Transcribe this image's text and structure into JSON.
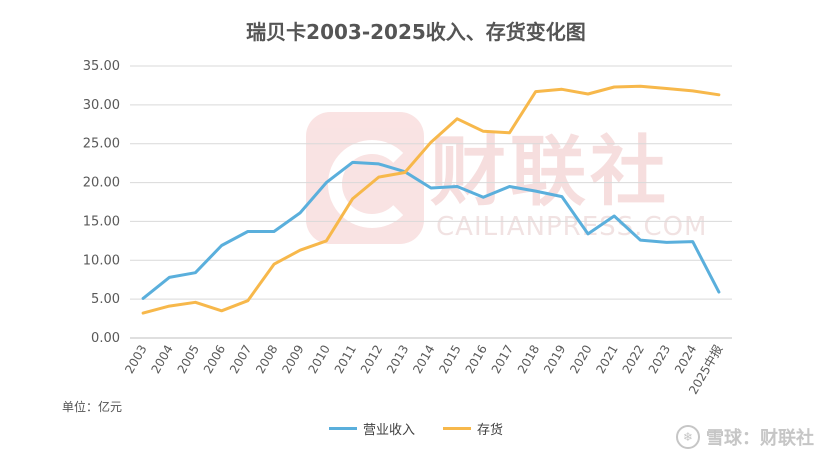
{
  "watermark": {
    "logo_icon": "cailianpress-logo-icon",
    "text_cn": "财联社",
    "text_en": "CAILIANPRESS.COM"
  },
  "unit_label": "单位：亿元",
  "brand": {
    "icon": "snowball-icon",
    "text": "雪球：财联社"
  },
  "chart_data": {
    "type": "line",
    "title": "瑞贝卡2003-2025收入、存货变化图",
    "xlabel": "",
    "ylabel": "",
    "ylim": [
      0,
      35
    ],
    "yticks": [
      "0.00",
      "5.00",
      "10.00",
      "15.00",
      "20.00",
      "25.00",
      "30.00",
      "35.00"
    ],
    "grid": true,
    "legend_position": "bottom",
    "categories": [
      "2003",
      "2004",
      "2005",
      "2006",
      "2007",
      "2008",
      "2009",
      "2010",
      "2011",
      "2012",
      "2013",
      "2014",
      "2015",
      "2016",
      "2017",
      "2018",
      "2019",
      "2020",
      "2021",
      "2022",
      "2023",
      "2024",
      "2025中报"
    ],
    "series": [
      {
        "name": "营业收入",
        "color": "#5aafdc",
        "values": [
          5.1,
          7.8,
          8.4,
          11.9,
          13.7,
          13.7,
          16.1,
          20.0,
          22.6,
          22.4,
          21.4,
          19.3,
          19.5,
          18.1,
          19.5,
          18.9,
          18.2,
          13.4,
          15.7,
          12.6,
          12.3,
          12.4,
          5.9
        ]
      },
      {
        "name": "存货",
        "color": "#f7b84b",
        "values": [
          3.2,
          4.1,
          4.6,
          3.5,
          4.8,
          9.5,
          11.3,
          12.5,
          17.9,
          20.7,
          21.3,
          25.2,
          28.2,
          26.6,
          26.4,
          31.7,
          32.0,
          31.4,
          32.3,
          32.4,
          32.1,
          31.8,
          31.3
        ]
      }
    ]
  }
}
